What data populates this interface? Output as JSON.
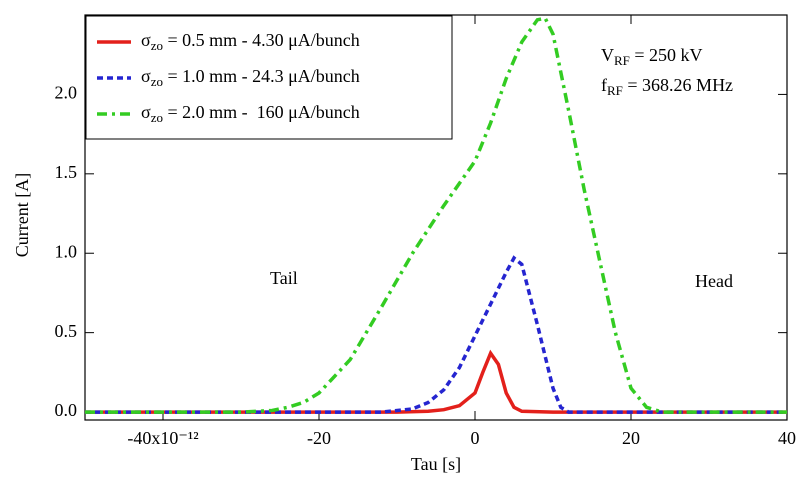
{
  "chart_data": {
    "type": "line",
    "xlabel": "Tau [s]",
    "ylabel": "Current [A]",
    "xlim": [
      -50,
      40
    ],
    "ylim": [
      -0.05,
      2.5
    ],
    "xticks": [
      {
        "value": -40,
        "label": "-40x10⁻¹²"
      },
      -20,
      0,
      20,
      40
    ],
    "yticks": [
      {
        "value": 0,
        "label": "0.0"
      },
      0.5,
      {
        "value": 1,
        "label": "1.0"
      },
      1.5,
      {
        "value": 2,
        "label": "2.0"
      }
    ],
    "legend": "upper left",
    "annotations": [
      "VRF = 250 kV",
      "fRF = 368.26 MHz",
      "Tail",
      "Head"
    ],
    "series": [
      {
        "name": "σzo = 0.5 mm - 4.30 μA/bunch",
        "color": "#e3201b",
        "linestyle": "solid",
        "x": [
          -50,
          -10,
          -6,
          -4,
          -2,
          0,
          1,
          2,
          3,
          4,
          5,
          6,
          10,
          40
        ],
        "values": [
          0,
          0,
          0.005,
          0.015,
          0.04,
          0.12,
          0.25,
          0.37,
          0.3,
          0.12,
          0.03,
          0.005,
          0,
          0
        ]
      },
      {
        "name": "σzo = 1.0 mm - 24.3 μA/bunch",
        "color": "#2525d0",
        "linestyle": "dashed",
        "x": [
          -50,
          -12,
          -8,
          -6,
          -4,
          -2,
          0,
          2,
          4,
          5,
          6,
          8,
          10,
          11,
          12,
          40
        ],
        "values": [
          0,
          0,
          0.02,
          0.06,
          0.14,
          0.28,
          0.48,
          0.68,
          0.88,
          0.97,
          0.93,
          0.55,
          0.15,
          0.03,
          0,
          0
        ]
      },
      {
        "name": "σzo = 2.0 mm -  160 μA/bunch",
        "color": "#33cc22",
        "linestyle": "dashdot",
        "x": [
          -50,
          -30,
          -26,
          -24,
          -22,
          -20,
          -16,
          -12,
          -8,
          -4,
          0,
          2,
          4,
          6,
          8,
          9,
          10,
          12,
          14,
          16,
          18,
          20,
          22,
          24,
          40
        ],
        "values": [
          0,
          0,
          0.01,
          0.03,
          0.06,
          0.12,
          0.33,
          0.66,
          1.0,
          1.3,
          1.58,
          1.82,
          2.1,
          2.33,
          2.47,
          2.48,
          2.38,
          1.9,
          1.4,
          0.95,
          0.5,
          0.15,
          0.03,
          0,
          0
        ]
      }
    ]
  }
}
